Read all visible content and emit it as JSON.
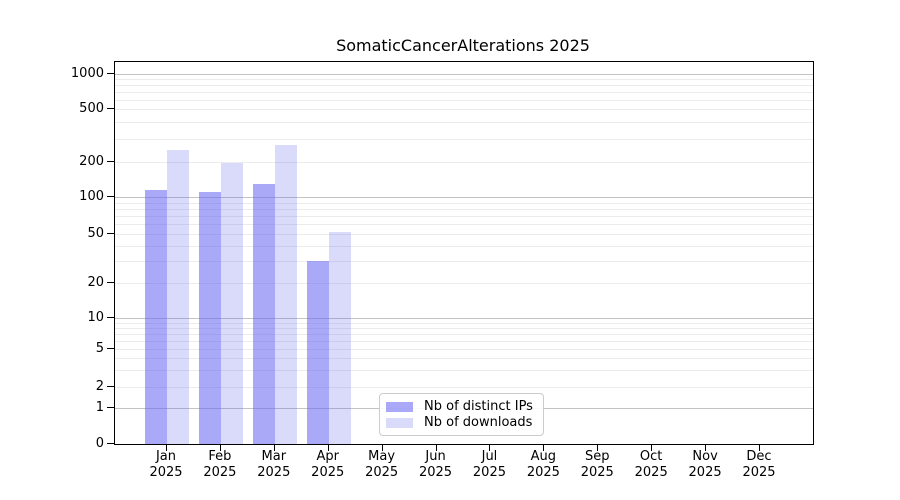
{
  "chart_data": {
    "type": "bar",
    "title": "SomaticCancerAlterations 2025",
    "year": "2025",
    "categories": [
      "Jan",
      "Feb",
      "Mar",
      "Apr",
      "May",
      "Jun",
      "Jul",
      "Aug",
      "Sep",
      "Oct",
      "Nov",
      "Dec"
    ],
    "series": [
      {
        "name": "Nb of distinct IPs",
        "color": "rgba(102,102,240,0.56)",
        "values": [
          115,
          110,
          130,
          30,
          0,
          0,
          0,
          0,
          0,
          0,
          0,
          0
        ]
      },
      {
        "name": "Nb of downloads",
        "color": "rgba(102,102,240,0.24)",
        "values": [
          245,
          195,
          270,
          52,
          0,
          0,
          0,
          0,
          0,
          0,
          0,
          0
        ]
      }
    ],
    "yticks": [
      0,
      1,
      2,
      5,
      10,
      20,
      50,
      100,
      200,
      500,
      1000
    ],
    "ylim": [
      0,
      1250
    ],
    "yscale": "log-like",
    "grid": "horizontal",
    "legend_position": "lower center",
    "xlabel": "",
    "ylabel": ""
  }
}
